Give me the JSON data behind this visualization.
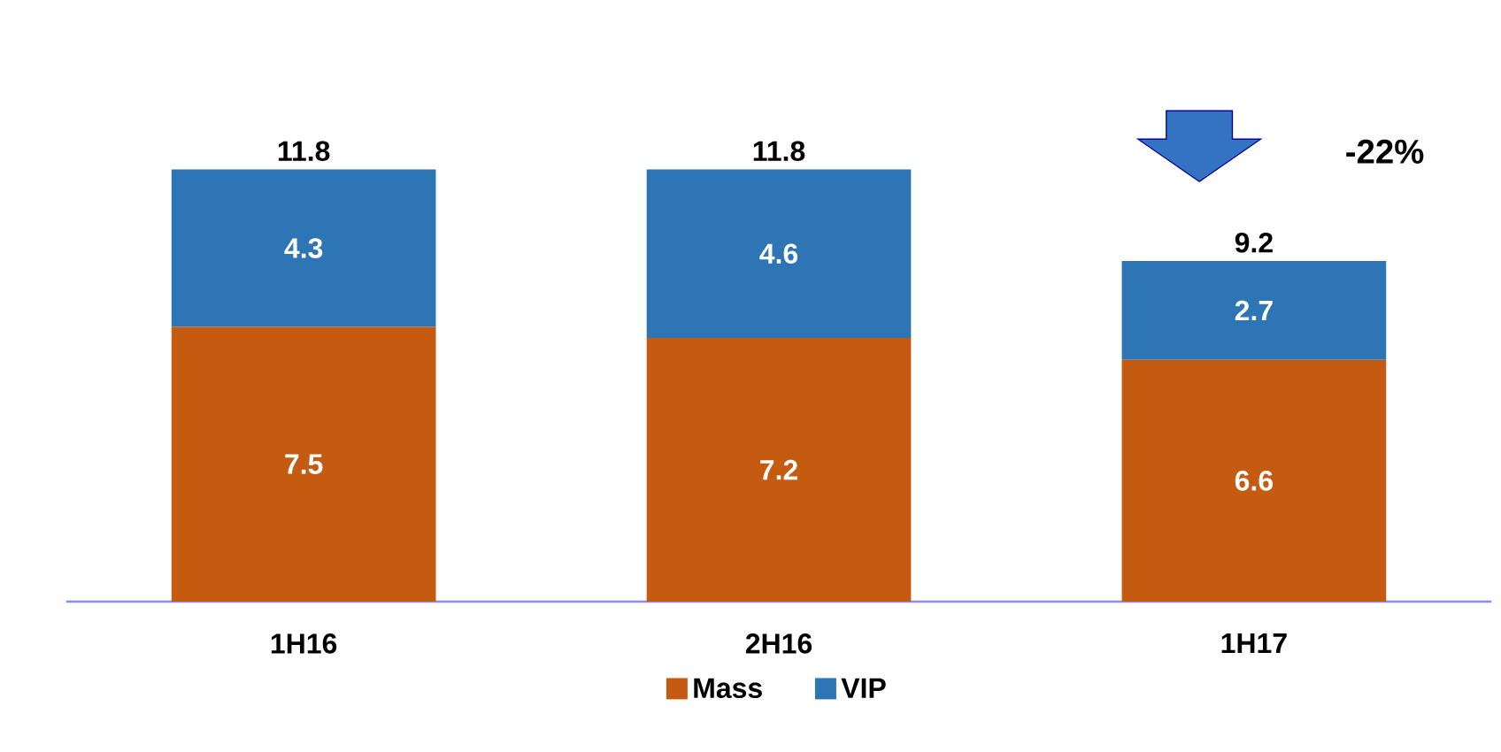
{
  "chart_data": {
    "type": "bar",
    "stacked": true,
    "categories": [
      "1H16",
      "2H16",
      "1H17"
    ],
    "series": [
      {
        "name": "Mass",
        "color": "#c55a11",
        "values": [
          7.5,
          7.2,
          6.6
        ]
      },
      {
        "name": "VIP",
        "color": "#2e75b6",
        "values": [
          4.3,
          4.6,
          2.7
        ]
      }
    ],
    "totals": [
      "11.8",
      "11.8",
      "9.2"
    ],
    "data_labels": true,
    "legend": "bottom",
    "annotations": [
      "-22%"
    ]
  }
}
